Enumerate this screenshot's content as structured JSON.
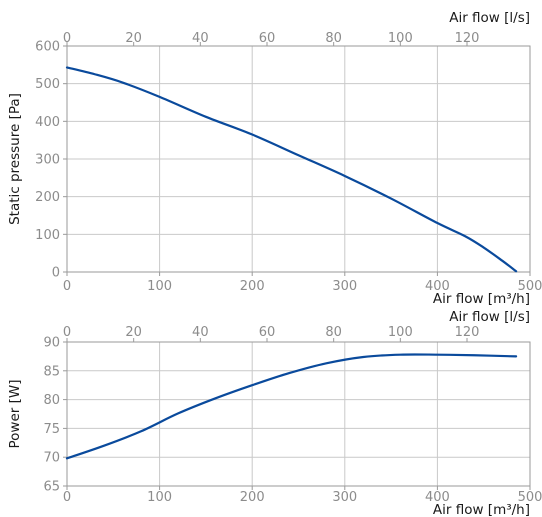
{
  "chart_data": [
    {
      "type": "line",
      "title": "",
      "xlabel": "Air flow [m³/h]",
      "x2label": "Air flow [l/s]",
      "ylabel": "Static pressure [Pa]",
      "xlim": [
        0,
        500
      ],
      "x2lim": [
        0,
        138.9
      ],
      "ylim": [
        0,
        600
      ],
      "xticks": [
        "0",
        "100",
        "200",
        "300",
        "400",
        "500"
      ],
      "x2ticks": [
        "0",
        "20",
        "40",
        "60",
        "80",
        "100",
        "120"
      ],
      "yticks": [
        "0",
        "100",
        "200",
        "300",
        "400",
        "500",
        "600"
      ],
      "grid": true,
      "series": [
        {
          "color": "#0a4a9c",
          "x": [
            0,
            30,
            60,
            100,
            150,
            200,
            250,
            300,
            350,
            400,
            430,
            450,
            470,
            485
          ],
          "y": [
            543,
            525,
            503,
            465,
            412,
            365,
            310,
            255,
            195,
            130,
            95,
            65,
            30,
            2
          ]
        }
      ]
    },
    {
      "type": "line",
      "title": "",
      "xlabel": "Air flow [m³/h]",
      "x2label": "Air flow [l/s]",
      "ylabel": "Power [W]",
      "xlim": [
        0,
        500
      ],
      "x2lim": [
        0,
        138.9
      ],
      "ylim": [
        65,
        90
      ],
      "xticks": [
        "0",
        "100",
        "200",
        "300",
        "400",
        "500"
      ],
      "x2ticks": [
        "0",
        "20",
        "40",
        "60",
        "80",
        "100",
        "120"
      ],
      "yticks": [
        "65",
        "70",
        "75",
        "80",
        "85",
        "90"
      ],
      "grid": true,
      "series": [
        {
          "color": "#0a4a9c",
          "x": [
            0,
            40,
            80,
            120,
            160,
            200,
            240,
            280,
            320,
            360,
            400,
            440,
            485
          ],
          "y": [
            69.8,
            72.0,
            74.5,
            77.6,
            80.2,
            82.5,
            84.6,
            86.3,
            87.4,
            87.8,
            87.8,
            87.7,
            87.5
          ]
        }
      ]
    }
  ]
}
